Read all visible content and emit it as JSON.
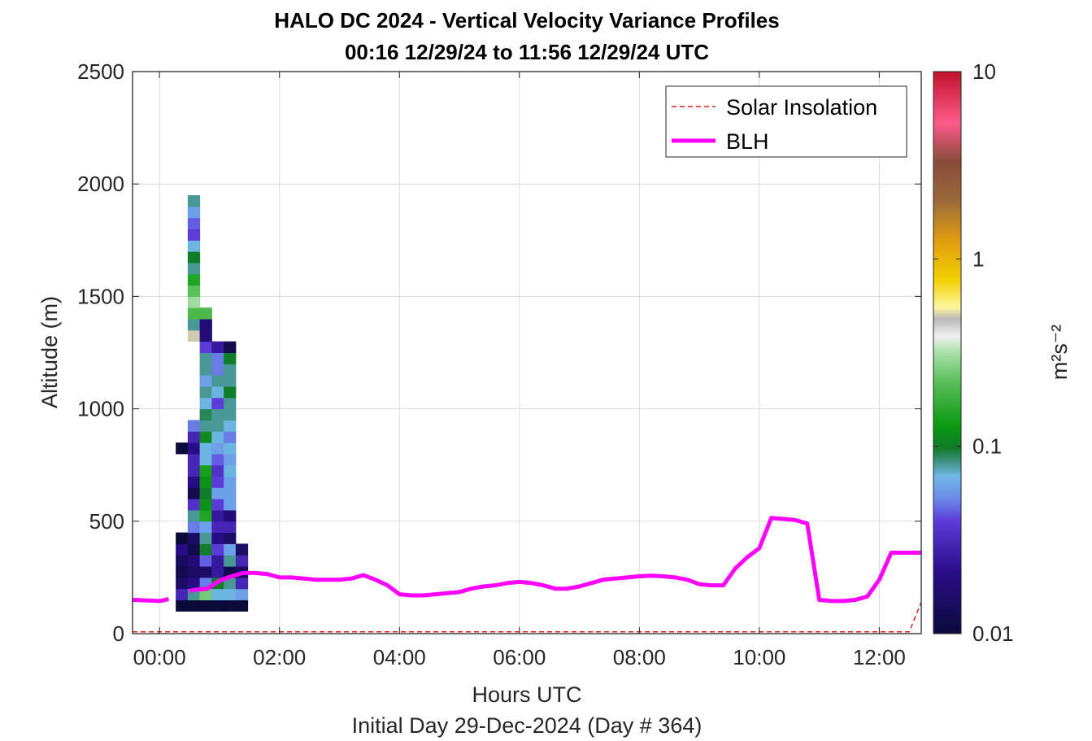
{
  "chart_data": {
    "type": "heatmap",
    "title": "HALO DC 2024 - Vertical Velocity Variance Profiles",
    "subtitle": "00:16 12/29/24 to 11:56 12/29/24  UTC",
    "xlabel": "Hours UTC",
    "xlabel2": "Initial Day 29-Dec-2024 (Day # 364)",
    "ylabel": "Altitude (m)",
    "colorbar_label": "m²s⁻²",
    "xlim": [
      -0.45,
      12.7
    ],
    "ylim": [
      0,
      2500
    ],
    "x_ticks": [
      0,
      2,
      4,
      6,
      8,
      10,
      12
    ],
    "x_tick_labels": [
      "00:00",
      "02:00",
      "04:00",
      "06:00",
      "08:00",
      "10:00",
      "12:00"
    ],
    "y_ticks": [
      0,
      500,
      1000,
      1500,
      2000,
      2500
    ],
    "y_tick_labels": [
      "0",
      "500",
      "1000",
      "1500",
      "2000",
      "2500"
    ],
    "colorbar": {
      "scale": "log",
      "range": [
        0.01,
        10
      ],
      "ticks": [
        0.01,
        0.1,
        1,
        10
      ],
      "tick_labels": [
        "0.01",
        "0.1",
        "1",
        "10"
      ]
    },
    "grid": true,
    "legend_position": "top-right",
    "legend": [
      {
        "name": "Solar Insolation",
        "style": "dashed",
        "color": "#e02020"
      },
      {
        "name": "BLH",
        "style": "solid",
        "color": "#ff00ff"
      }
    ],
    "heatmap": {
      "x_start": 0.27,
      "dx": 0.2,
      "y_start": 100,
      "dy": 50,
      "value_unit": "m²s⁻²",
      "columns": [
        [
          0.01,
          0.03,
          0.015,
          0.012,
          0.014,
          0.02,
          0.01,
          null,
          null,
          null,
          null,
          null,
          null,
          null,
          0.01
        ],
        [
          0.01,
          0.08,
          0.02,
          0.015,
          0.018,
          0.012,
          0.015,
          0.05,
          0.08,
          0.035,
          0.012,
          0.02,
          0.03,
          0.03,
          0.02,
          0.03,
          0.05,
          null,
          null,
          null,
          null,
          null,
          null,
          null,
          0.5,
          0.08,
          0.2,
          0.3,
          0.22,
          0.15,
          0.08,
          0.1,
          0.07,
          0.04,
          0.045,
          0.06,
          0.08
        ],
        [
          0.01,
          0.25,
          0.05,
          0.015,
          0.045,
          0.1,
          0.08,
          0.06,
          0.15,
          0.12,
          0.1,
          0.12,
          0.14,
          0.07,
          0.07,
          0.11,
          0.08,
          0.09,
          0.07,
          0.08,
          0.06,
          0.08,
          0.08,
          0.04,
          0.018,
          0.018,
          0.2
        ],
        [
          0.01,
          0.07,
          0.1,
          0.025,
          0.025,
          0.04,
          0.02,
          0.03,
          0.025,
          0.04,
          0.06,
          0.04,
          0.035,
          0.045,
          0.06,
          0.07,
          0.08,
          0.08,
          0.04,
          0.07,
          0.08,
          0.05,
          0.05,
          0.025
        ],
        [
          0.01,
          0.07,
          0.08,
          0.012,
          0.08,
          0.06,
          0.015,
          0.03,
          0.018,
          0.06,
          0.06,
          0.06,
          0.07,
          0.06,
          0.07,
          0.05,
          0.07,
          0.08,
          0.08,
          0.1,
          0.08,
          0.08,
          0.1,
          0.012
        ],
        [
          0.01,
          0.06,
          0.03,
          0.015,
          0.03,
          0.015
        ]
      ]
    },
    "blh": {
      "x": [
        -0.45,
        0.0,
        0.1,
        0.15,
        0.3,
        0.45,
        0.5,
        0.6,
        0.8,
        1.0,
        1.2,
        1.4,
        1.6,
        1.8,
        2.0,
        2.2,
        2.4,
        2.6,
        2.8,
        3.0,
        3.2,
        3.4,
        3.6,
        3.8,
        4.0,
        4.2,
        4.4,
        4.6,
        4.8,
        5.0,
        5.2,
        5.4,
        5.6,
        5.8,
        6.0,
        6.2,
        6.4,
        6.6,
        6.8,
        7.0,
        7.2,
        7.4,
        7.6,
        7.8,
        8.0,
        8.2,
        8.4,
        8.6,
        8.8,
        9.0,
        9.2,
        9.4,
        9.6,
        9.8,
        10.0,
        10.2,
        10.4,
        10.6,
        10.8,
        11.0,
        11.2,
        11.4,
        11.6,
        11.8,
        12.0,
        12.2,
        12.4,
        12.7
      ],
      "y": [
        150,
        145,
        150,
        155,
        null,
        null,
        190,
        195,
        200,
        235,
        255,
        270,
        270,
        265,
        250,
        250,
        245,
        240,
        240,
        240,
        245,
        260,
        240,
        215,
        175,
        170,
        170,
        175,
        180,
        185,
        200,
        210,
        215,
        225,
        230,
        225,
        215,
        200,
        200,
        210,
        225,
        240,
        245,
        250,
        255,
        258,
        255,
        250,
        240,
        220,
        215,
        215,
        290,
        340,
        380,
        515,
        510,
        505,
        490,
        150,
        145,
        145,
        150,
        165,
        240,
        360,
        360,
        360
      ]
    },
    "solar_insolation": {
      "x": [
        -0.45,
        12.5,
        12.7
      ],
      "y": [
        8,
        8,
        140
      ]
    }
  }
}
